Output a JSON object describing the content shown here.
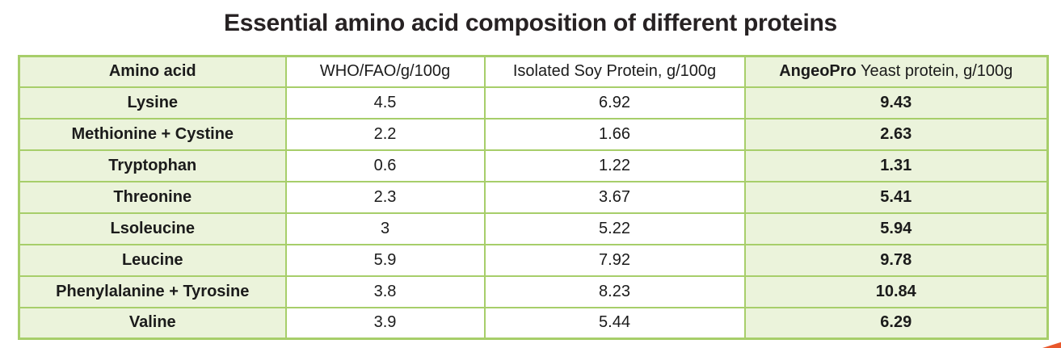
{
  "title": "Essential amino acid composition of different proteins",
  "table": {
    "columns": {
      "amino_acid": "Amino acid",
      "who_fao": "WHO/FAO/g/100g",
      "soy": "Isolated Soy Protein, g/100g",
      "angeopro_brand": "AngeoPro",
      "angeopro_rest": " Yeast protein, g/100g"
    },
    "rows": [
      {
        "name": "Lysine",
        "who_fao": "4.5",
        "soy": "6.92",
        "angeopro": "9.43"
      },
      {
        "name": "Methionine + Cystine",
        "who_fao": "2.2",
        "soy": "1.66",
        "angeopro": "2.63"
      },
      {
        "name": "Tryptophan",
        "who_fao": "0.6",
        "soy": "1.22",
        "angeopro": "1.31"
      },
      {
        "name": "Threonine",
        "who_fao": "2.3",
        "soy": "3.67",
        "angeopro": "5.41"
      },
      {
        "name": "Lsoleucine",
        "who_fao": "3",
        "soy": "5.22",
        "angeopro": "5.94"
      },
      {
        "name": "Leucine",
        "who_fao": "5.9",
        "soy": "7.92",
        "angeopro": "9.78"
      },
      {
        "name": "Phenylalanine + Tyrosine",
        "who_fao": "3.8",
        "soy": "8.23",
        "angeopro": "10.84"
      },
      {
        "name": "Valine",
        "who_fao": "3.9",
        "soy": "5.44",
        "angeopro": "6.29"
      }
    ]
  },
  "colors": {
    "border_green": "#a7ce6a",
    "cell_green": "#ebf3db",
    "title_color": "#272223",
    "text_color": "#1b1b1b",
    "accent_orange": "#e9582c"
  }
}
